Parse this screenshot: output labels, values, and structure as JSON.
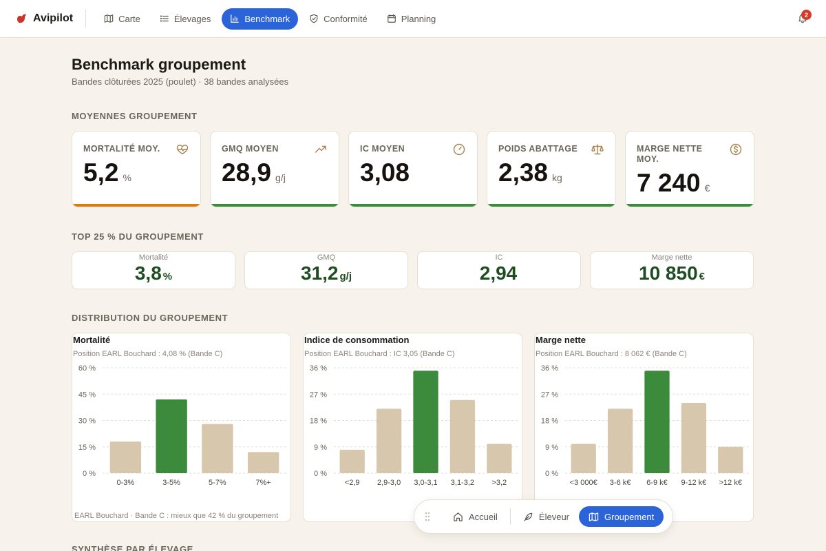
{
  "app": {
    "name": "Avipilot",
    "notifications": "2"
  },
  "nav": [
    {
      "label": "Carte",
      "icon": "map-icon"
    },
    {
      "label": "Élevages",
      "icon": "list-icon"
    },
    {
      "label": "Benchmark",
      "icon": "bar-chart-icon",
      "active": true
    },
    {
      "label": "Conformité",
      "icon": "shield-icon"
    },
    {
      "label": "Planning",
      "icon": "calendar-icon"
    }
  ],
  "page": {
    "title": "Benchmark groupement",
    "subtitle": "Bandes clôturées 2025 (poulet) · 38 bandes analysées"
  },
  "sections": {
    "averages": "MOYENNES GROUPEMENT",
    "top": "TOP 25 % DU GROUPEMENT",
    "distribution": "DISTRIBUTION DU GROUPEMENT",
    "synthesis": "SYNTHÈSE PAR ÉLEVAGE"
  },
  "kpis": [
    {
      "label": "MORTALITÉ MOY.",
      "value": "5,2",
      "unit": "%",
      "icon": "heart-pulse-icon",
      "accent": "#d97a16"
    },
    {
      "label": "GMQ MOYEN",
      "value": "28,9",
      "unit": "g/j",
      "icon": "trending-up-icon",
      "accent": "#3c8a3c"
    },
    {
      "label": "IC MOYEN",
      "value": "3,08",
      "unit": "",
      "icon": "gauge-icon",
      "accent": "#3c8a3c"
    },
    {
      "label": "POIDS ABATTAGE",
      "value": "2,38",
      "unit": "kg",
      "icon": "scale-icon",
      "accent": "#3c8a3c"
    },
    {
      "label": "MARGE NETTE MOY.",
      "value": "7 240",
      "unit": "€",
      "icon": "dollar-circle-icon",
      "accent": "#3c8a3c"
    }
  ],
  "top": [
    {
      "label": "Mortalité",
      "value": "3,8",
      "unit": "%"
    },
    {
      "label": "GMQ",
      "value": "31,2",
      "unit": "g/j"
    },
    {
      "label": "IC",
      "value": "2,94",
      "unit": ""
    },
    {
      "label": "Marge nette",
      "value": "10 850",
      "unit": "€"
    }
  ],
  "colors": {
    "bar_default": "#d7c8ad",
    "bar_highlight": "#3c8a3c",
    "primary": "#2b63d9"
  },
  "chart_data": [
    {
      "type": "bar",
      "title": "Mortalité",
      "subtitle": "Position EARL Bouchard : 4,08 % (Bande C)",
      "footnote": "EARL Bouchard · Bande C : mieux que 42 % du groupement",
      "categories": [
        "0-3%",
        "3-5%",
        "5-7%",
        "7%+"
      ],
      "values": [
        18,
        42,
        28,
        12
      ],
      "highlight_index": 1,
      "yticks": [
        0,
        15,
        30,
        45,
        60
      ],
      "ytick_labels": [
        "0 %",
        "15 %",
        "30 %",
        "45 %",
        "60 %"
      ],
      "ylim": [
        0,
        60
      ],
      "grid": true
    },
    {
      "type": "bar",
      "title": "Indice de consommation",
      "subtitle": "Position EARL Bouchard : IC 3,05 (Bande C)",
      "categories": [
        "<2,9",
        "2,9-3,0",
        "3,0-3,1",
        "3,1-3,2",
        ">3,2"
      ],
      "values": [
        8,
        22,
        35,
        25,
        10
      ],
      "highlight_index": 2,
      "yticks": [
        0,
        9,
        18,
        27,
        36
      ],
      "ytick_labels": [
        "0 %",
        "9 %",
        "18 %",
        "27 %",
        "36 %"
      ],
      "ylim": [
        0,
        36
      ],
      "grid": true
    },
    {
      "type": "bar",
      "title": "Marge nette",
      "subtitle": "Position EARL Bouchard : 8 062 € (Bande C)",
      "categories": [
        "<3 000€",
        "3-6 k€",
        "6-9 k€",
        "9-12 k€",
        ">12 k€"
      ],
      "values": [
        10,
        22,
        35,
        24,
        9
      ],
      "highlight_index": 2,
      "yticks": [
        0,
        9,
        18,
        27,
        36
      ],
      "ytick_labels": [
        "0 %",
        "9 %",
        "18 %",
        "27 %",
        "36 %"
      ],
      "ylim": [
        0,
        36
      ],
      "grid": true
    }
  ],
  "bottom_nav": [
    {
      "label": "Accueil",
      "icon": "home-icon"
    },
    {
      "label": "Éleveur",
      "icon": "feather-icon"
    },
    {
      "label": "Groupement",
      "icon": "map-icon",
      "active": true
    }
  ]
}
